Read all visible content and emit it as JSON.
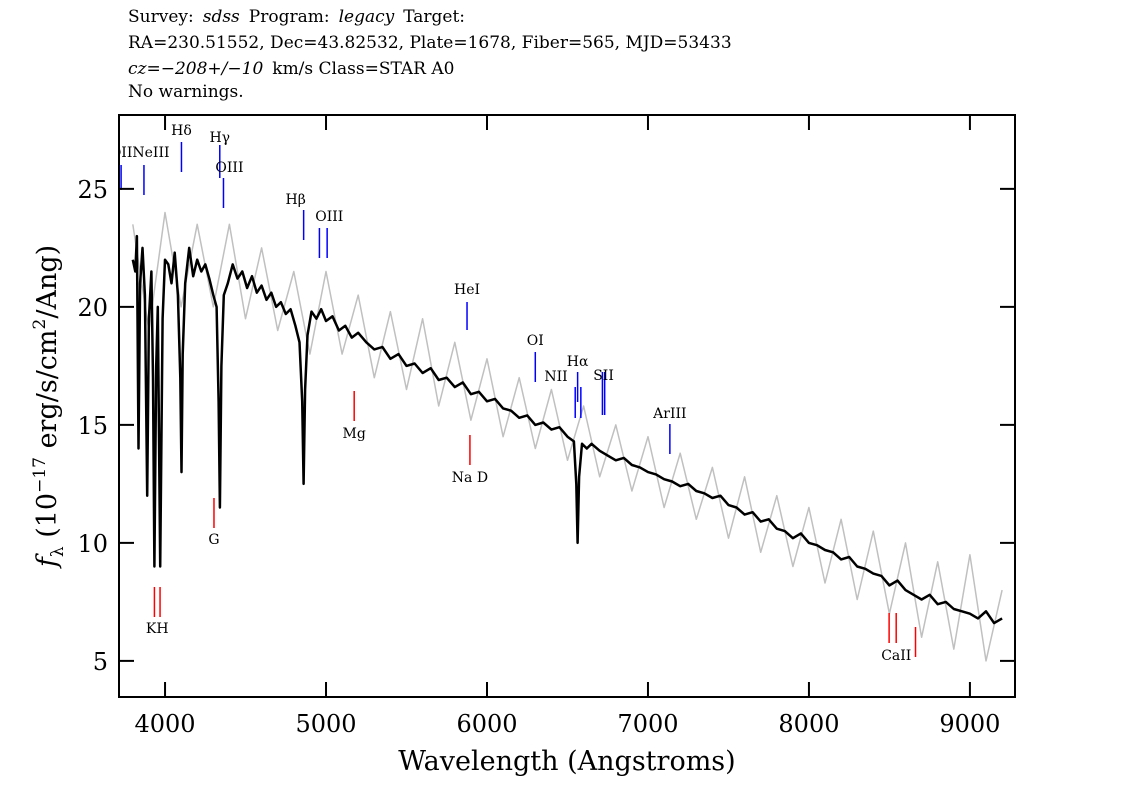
{
  "chart_data": {
    "type": "line",
    "header": [
      [
        {
          "text": "Survey:"
        },
        {
          "text": "sdss",
          "italic": true
        },
        {
          "text": "Program:"
        },
        {
          "text": "legacy",
          "italic": true
        },
        {
          "text": "Target:"
        }
      ],
      [
        {
          "text": "RA=230.51552, Dec=43.82532, Plate=1678, Fiber=565, MJD=53433"
        }
      ],
      [
        {
          "text": "cz=−208+/−10",
          "italic": true
        },
        {
          "text": "km/s Class=STAR A0"
        }
      ],
      [
        {
          "text": "No warnings."
        }
      ]
    ],
    "x_label": "Wavelength (Angstroms)",
    "y_label": [
      {
        "text": "f",
        "italic": true
      },
      {
        "text": "λ",
        "sub": true
      },
      {
        "text": " (10"
      },
      {
        "text": "−17",
        "sup": true
      },
      {
        "text": " erg/s/cm"
      },
      {
        "text": "2",
        "sup": true
      },
      {
        "text": "/Ang)"
      }
    ],
    "xlim": [
      3714,
      9280
    ],
    "ylim": [
      3.47,
      28.13
    ],
    "xticks": [
      4000,
      5000,
      6000,
      7000,
      8000,
      9000
    ],
    "yticks": [
      5,
      10,
      15,
      20,
      25
    ],
    "grid": false,
    "series": [
      {
        "color": "#c0c0c0",
        "x": [
          3800,
          3900,
          4000,
          4100,
          4200,
          4300,
          4400,
          4500,
          4600,
          4700,
          4800,
          4900,
          5000,
          5100,
          5200,
          5300,
          5400,
          5500,
          5600,
          5700,
          5800,
          5900,
          6000,
          6100,
          6200,
          6300,
          6400,
          6500,
          6600,
          6700,
          6800,
          6900,
          7000,
          7100,
          7200,
          7300,
          7400,
          7500,
          7600,
          7700,
          7800,
          7900,
          8000,
          8100,
          8200,
          8300,
          8400,
          8500,
          8600,
          8700,
          8800,
          8900,
          9000,
          9100,
          9200
        ],
        "values": [
          23.5,
          19,
          24,
          20,
          23.5,
          20,
          23.5,
          19.5,
          22.5,
          19,
          21.5,
          18,
          21.5,
          18,
          20.5,
          17,
          19.8,
          16.5,
          19.5,
          15.8,
          18.5,
          15.2,
          17.8,
          14.5,
          17,
          14,
          16.5,
          13.5,
          15.8,
          12.8,
          15,
          12.2,
          14.5,
          11.5,
          13.8,
          11,
          13.2,
          10.2,
          12.8,
          9.6,
          12,
          9,
          11.5,
          8.3,
          11,
          7.6,
          10.5,
          7,
          10,
          6,
          9.2,
          5.5,
          9.5,
          5,
          8
        ]
      },
      {
        "color": "#000000",
        "x": [
          3800,
          3815,
          3825,
          3835,
          3845,
          3860,
          3875,
          3889,
          3900,
          3915,
          3925,
          3934,
          3945,
          3955,
          3970,
          3985,
          4000,
          4020,
          4040,
          4060,
          4080,
          4095,
          4102,
          4110,
          4125,
          4150,
          4175,
          4200,
          4225,
          4250,
          4275,
          4300,
          4320,
          4333,
          4341,
          4350,
          4365,
          4390,
          4420,
          4450,
          4480,
          4510,
          4540,
          4570,
          4600,
          4630,
          4660,
          4690,
          4720,
          4750,
          4780,
          4810,
          4835,
          4852,
          4861,
          4870,
          4885,
          4910,
          4940,
          4970,
          5000,
          5040,
          5080,
          5120,
          5160,
          5200,
          5250,
          5300,
          5350,
          5400,
          5450,
          5500,
          5550,
          5600,
          5650,
          5700,
          5750,
          5800,
          5850,
          5900,
          5950,
          6000,
          6050,
          6100,
          6150,
          6200,
          6250,
          6300,
          6350,
          6400,
          6450,
          6500,
          6540,
          6555,
          6563,
          6572,
          6590,
          6620,
          6650,
          6700,
          6750,
          6800,
          6850,
          6900,
          6950,
          7000,
          7050,
          7100,
          7150,
          7200,
          7250,
          7300,
          7350,
          7400,
          7450,
          7500,
          7550,
          7600,
          7650,
          7700,
          7750,
          7800,
          7850,
          7900,
          7950,
          8000,
          8050,
          8100,
          8150,
          8200,
          8250,
          8300,
          8350,
          8400,
          8450,
          8500,
          8550,
          8600,
          8650,
          8700,
          8750,
          8800,
          8850,
          8900,
          8950,
          9000,
          9050,
          9100,
          9150,
          9200
        ],
        "values": [
          22.0,
          21.5,
          23.0,
          14.0,
          21.0,
          22.5,
          20.5,
          12.0,
          19.5,
          21.5,
          17.0,
          9.0,
          17.5,
          20.0,
          9.0,
          19.5,
          22.0,
          21.8,
          21.0,
          22.3,
          20.5,
          17.0,
          13.0,
          18.0,
          21.0,
          22.5,
          21.3,
          22.0,
          21.5,
          21.8,
          21.2,
          20.5,
          20.0,
          16.0,
          11.5,
          17.5,
          20.5,
          21.0,
          21.8,
          21.2,
          21.5,
          20.8,
          21.3,
          20.6,
          20.9,
          20.3,
          20.6,
          20.0,
          20.2,
          19.7,
          19.9,
          19.2,
          18.5,
          16.0,
          12.5,
          16.5,
          18.8,
          19.8,
          19.5,
          19.9,
          19.4,
          19.6,
          19.0,
          19.2,
          18.7,
          18.9,
          18.5,
          18.2,
          18.3,
          17.8,
          18.0,
          17.5,
          17.6,
          17.2,
          17.4,
          16.9,
          17.0,
          16.6,
          16.8,
          16.3,
          16.4,
          16.0,
          16.1,
          15.7,
          15.6,
          15.3,
          15.4,
          15.0,
          15.1,
          14.8,
          14.9,
          14.5,
          14.3,
          12.5,
          10.0,
          12.8,
          14.2,
          14.0,
          14.2,
          13.9,
          13.7,
          13.5,
          13.6,
          13.3,
          13.2,
          13.0,
          12.9,
          12.7,
          12.6,
          12.4,
          12.5,
          12.2,
          12.1,
          11.9,
          12.0,
          11.6,
          11.5,
          11.2,
          11.3,
          10.9,
          11.0,
          10.6,
          10.5,
          10.2,
          10.4,
          10.0,
          9.9,
          9.7,
          9.6,
          9.3,
          9.4,
          9.0,
          8.9,
          8.7,
          8.6,
          8.2,
          8.4,
          8.0,
          7.8,
          7.6,
          7.8,
          7.4,
          7.5,
          7.2,
          7.1,
          7.0,
          6.8,
          7.1,
          6.6,
          6.8
        ]
      }
    ],
    "annotations": [
      {
        "label": "OII",
        "wavelengths": [
          3727
        ],
        "color": "#0000ff"
      },
      {
        "label": "NeIII",
        "wavelengths": [
          3869
        ],
        "color": "#0000ff"
      },
      {
        "label": "Hδ",
        "wavelengths": [
          4102
        ],
        "color": "#0000ff"
      },
      {
        "label": "Hγ",
        "wavelengths": [
          4340
        ],
        "color": "#0000ff"
      },
      {
        "label": "OIII",
        "wavelengths": [
          4363
        ],
        "color": "#0000ff"
      },
      {
        "label": "Hβ",
        "wavelengths": [
          4861
        ],
        "color": "#0000ff"
      },
      {
        "label": "OIII",
        "wavelengths": [
          4959,
          5007
        ],
        "color": "#0000ff"
      },
      {
        "label": "HeI",
        "wavelengths": [
          5876
        ],
        "color": "#0000ff"
      },
      {
        "label": "OI",
        "wavelengths": [
          6300
        ],
        "color": "#0000ff"
      },
      {
        "label": "NII",
        "wavelengths": [
          6548,
          6583
        ],
        "color": "#0000ff"
      },
      {
        "label": "Hα",
        "wavelengths": [
          6563
        ],
        "color": "#0000ff"
      },
      {
        "label": "SII",
        "wavelengths": [
          6717,
          6731
        ],
        "color": "#0000ff"
      },
      {
        "label": "ArIII",
        "wavelengths": [
          7136
        ],
        "color": "#0000ff"
      },
      {
        "label": "KH",
        "wavelengths": [
          3934,
          3969
        ],
        "color": "#ff0000"
      },
      {
        "label": "G",
        "wavelengths": [
          4304
        ],
        "color": "#ff0000"
      },
      {
        "label": "Mg",
        "wavelengths": [
          5175
        ],
        "color": "#ff0000"
      },
      {
        "label": "Na D",
        "wavelengths": [
          5894
        ],
        "color": "#ff0000"
      },
      {
        "label": "CaII",
        "wavelengths": [
          8498,
          8542,
          8662
        ],
        "color": "#ff0000"
      }
    ]
  }
}
